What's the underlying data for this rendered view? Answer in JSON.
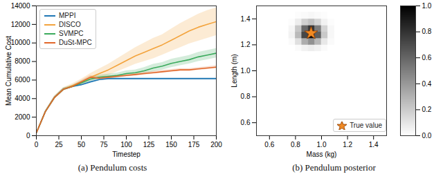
{
  "chart_data": [
    {
      "type": "line",
      "title": "(a) Pendulum costs",
      "xlabel": "Timestep",
      "ylabel": "Mean Cumulative Cost",
      "xlim": [
        0,
        200
      ],
      "xticks": [
        0,
        25,
        50,
        75,
        100,
        125,
        150,
        175,
        200
      ],
      "ylim": [
        0,
        14000
      ],
      "yticks": [
        0,
        2000,
        4000,
        6000,
        8000,
        10000,
        12000,
        14000
      ],
      "grid": false,
      "legend": "upper left",
      "x": [
        0,
        10,
        20,
        30,
        40,
        50,
        60,
        70,
        80,
        90,
        100,
        110,
        120,
        130,
        140,
        150,
        160,
        170,
        180,
        190,
        200
      ],
      "series": [
        {
          "name": "MPPI",
          "color": "#1f77b4",
          "values": [
            300,
            2600,
            4100,
            5000,
            5300,
            5500,
            5800,
            6050,
            6150,
            6150,
            6150,
            6150,
            6150,
            6150,
            6150,
            6150,
            6150,
            6150,
            6150,
            6150,
            6150
          ],
          "lower": [
            300,
            2500,
            4000,
            4900,
            5200,
            5400,
            5700,
            5950,
            6050,
            6050,
            6050,
            6050,
            6050,
            6050,
            6050,
            6050,
            6050,
            6050,
            6050,
            6050,
            6050
          ],
          "upper": [
            300,
            2700,
            4200,
            5100,
            5400,
            5600,
            5900,
            6150,
            6250,
            6250,
            6250,
            6250,
            6250,
            6250,
            6250,
            6250,
            6250,
            6250,
            6250,
            6250,
            6250
          ]
        },
        {
          "name": "DISCO",
          "color": "#f3a33c",
          "values": [
            300,
            2600,
            4100,
            5000,
            5400,
            5800,
            6300,
            6700,
            7100,
            7600,
            8100,
            8600,
            9000,
            9400,
            9800,
            10300,
            10800,
            11300,
            11700,
            12000,
            12300
          ],
          "lower": [
            300,
            2500,
            3900,
            4800,
            5200,
            5500,
            5900,
            6200,
            6500,
            6900,
            7300,
            7700,
            8000,
            8300,
            8700,
            9100,
            9500,
            9900,
            10200,
            10500,
            10800
          ],
          "upper": [
            300,
            2700,
            4300,
            5200,
            5600,
            6100,
            6700,
            7200,
            7700,
            8300,
            8900,
            9500,
            10000,
            10500,
            10900,
            11500,
            12100,
            12600,
            13100,
            13500,
            13800
          ]
        },
        {
          "name": "SVMPC",
          "color": "#3aaa5c",
          "values": [
            300,
            2600,
            4100,
            5000,
            5300,
            5700,
            6100,
            6300,
            6400,
            6500,
            6700,
            6800,
            7000,
            7300,
            7500,
            7800,
            8000,
            8200,
            8500,
            8700,
            8900
          ],
          "lower": [
            300,
            2500,
            4000,
            4850,
            5150,
            5500,
            5850,
            6050,
            6150,
            6250,
            6400,
            6500,
            6650,
            6900,
            7100,
            7350,
            7550,
            7750,
            8000,
            8200,
            8400
          ],
          "upper": [
            300,
            2700,
            4200,
            5150,
            5450,
            5900,
            6350,
            6550,
            6650,
            6750,
            7000,
            7100,
            7350,
            7700,
            7900,
            8250,
            8450,
            8650,
            9000,
            9200,
            9400
          ]
        },
        {
          "name": "DuSt-MPC",
          "color": "#e2672a",
          "values": [
            300,
            2600,
            4100,
            5000,
            5300,
            5800,
            6300,
            6200,
            6300,
            6400,
            6500,
            6600,
            6700,
            6800,
            6900,
            7000,
            7100,
            7100,
            7200,
            7300,
            7400
          ],
          "lower": [
            300,
            2550,
            4000,
            4900,
            5200,
            5650,
            6100,
            6050,
            6150,
            6250,
            6350,
            6450,
            6550,
            6650,
            6750,
            6850,
            6950,
            6950,
            7050,
            7150,
            7250
          ],
          "upper": [
            300,
            2650,
            4200,
            5100,
            5400,
            5950,
            6500,
            6350,
            6450,
            6550,
            6650,
            6750,
            6850,
            6950,
            7050,
            7150,
            7250,
            7250,
            7350,
            7450,
            7550
          ]
        }
      ]
    },
    {
      "type": "heatmap",
      "title": "(b) Pendulum posterior",
      "xlabel": "Mass (kg)",
      "ylabel": "Length (m)",
      "xlim": [
        0.5,
        1.5
      ],
      "xticks": [
        0.6,
        0.8,
        {
          "value": 1,
          "label": "1.0"
        },
        1.2,
        1.4
      ],
      "ylim": [
        0.5,
        1.5
      ],
      "yticks": [
        0.6,
        0.8,
        {
          "value": 1,
          "label": "1.0"
        },
        1.2,
        1.4
      ],
      "x": [
        0.775,
        0.825,
        0.875,
        0.925,
        0.975,
        1.025,
        1.075
      ],
      "y": [
        1.175,
        1.225,
        1.275,
        1.325,
        1.375,
        1.425
      ],
      "z": [
        [
          0.0,
          0.02,
          0.05,
          0.07,
          0.05,
          0.02,
          0.0
        ],
        [
          0.02,
          0.12,
          0.32,
          0.43,
          0.28,
          0.09,
          0.02
        ],
        [
          0.05,
          0.27,
          0.72,
          0.95,
          0.63,
          0.21,
          0.03
        ],
        [
          0.04,
          0.22,
          0.59,
          0.78,
          0.51,
          0.17,
          0.03
        ],
        [
          0.01,
          0.07,
          0.18,
          0.24,
          0.16,
          0.05,
          0.01
        ],
        [
          0.0,
          0.01,
          0.02,
          0.03,
          0.02,
          0.01,
          0.0
        ]
      ],
      "zlim": [
        0,
        1
      ],
      "zticks": [
        {
          "value": 0,
          "label": "0.0"
        },
        0.2,
        0.4,
        0.6,
        0.8,
        {
          "value": 1,
          "label": "1.0"
        }
      ],
      "legend": "lower right",
      "points": [
        {
          "name": "True value",
          "x": 0.92,
          "y": 1.29,
          "color": "#f08a24",
          "marker": "star"
        }
      ]
    }
  ]
}
